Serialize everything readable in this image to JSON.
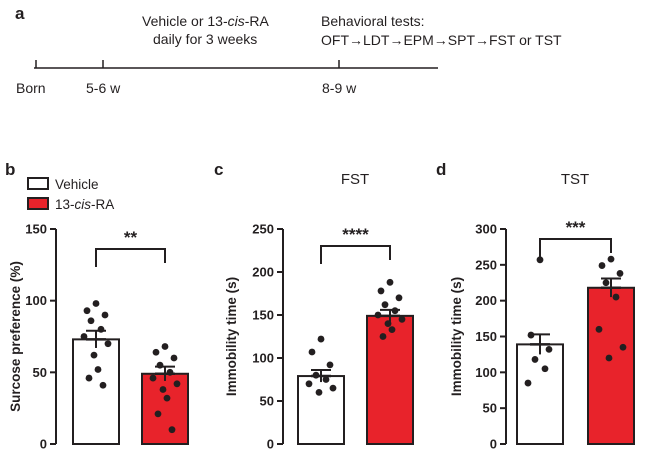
{
  "panel_a": {
    "label": "a",
    "treatment_line1": "Vehicle or 13-",
    "treatment_italic": "cis",
    "treatment_line1_end": "-RA",
    "treatment_line2": "daily for 3 weeks",
    "tests_line1": "Behavioral tests:",
    "tests_line2": "OFT→LDT→EPM→SPT→FST or TST",
    "timepoints": [
      "Born",
      "5-6 w",
      "8-9 w"
    ]
  },
  "legend": {
    "vehicle": "Vehicle",
    "ra_prefix": "13-",
    "ra_italic": "cis",
    "ra_suffix": "-RA"
  },
  "colors": {
    "vehicle": "#ffffff",
    "ra": "#e8232b",
    "ink": "#231f20"
  },
  "chart_data": [
    {
      "panel": "b",
      "type": "bar",
      "title": "",
      "ylabel": "Surcose preference (%)",
      "ylim": [
        0,
        150
      ],
      "yticks": [
        0,
        50,
        100,
        150
      ],
      "categories": [
        "Vehicle",
        "13-cis-RA"
      ],
      "values": [
        73,
        49
      ],
      "sem": [
        6,
        5
      ],
      "points": [
        [
          98,
          93,
          90,
          86,
          80,
          75,
          70,
          62,
          52,
          46,
          41
        ],
        [
          68,
          64,
          60,
          55,
          50,
          46,
          42,
          38,
          32,
          21,
          10
        ]
      ],
      "significance": "**"
    },
    {
      "panel": "c",
      "type": "bar",
      "title": "FST",
      "ylabel": "Immobility time (s)",
      "ylim": [
        0,
        250
      ],
      "yticks": [
        0,
        50,
        100,
        150,
        200,
        250
      ],
      "categories": [
        "Vehicle",
        "13-cis-RA"
      ],
      "values": [
        79,
        149
      ],
      "sem": [
        7,
        7
      ],
      "points": [
        [
          122,
          107,
          92,
          80,
          75,
          70,
          65,
          60
        ],
        [
          188,
          178,
          170,
          162,
          155,
          150,
          145,
          140,
          133,
          125
        ]
      ],
      "significance": "****"
    },
    {
      "panel": "d",
      "type": "bar",
      "title": "TST",
      "ylabel": "Immobility time (s)",
      "ylim": [
        0,
        300
      ],
      "yticks": [
        0,
        50,
        100,
        150,
        200,
        250,
        300
      ],
      "categories": [
        "Vehicle",
        "13-cis-RA"
      ],
      "values": [
        139,
        218
      ],
      "sem": [
        14,
        13
      ],
      "points": [
        [
          257,
          152,
          132,
          118,
          105,
          85
        ],
        [
          258,
          249,
          238,
          225,
          205,
          160,
          135,
          120
        ]
      ],
      "significance": "***"
    }
  ]
}
